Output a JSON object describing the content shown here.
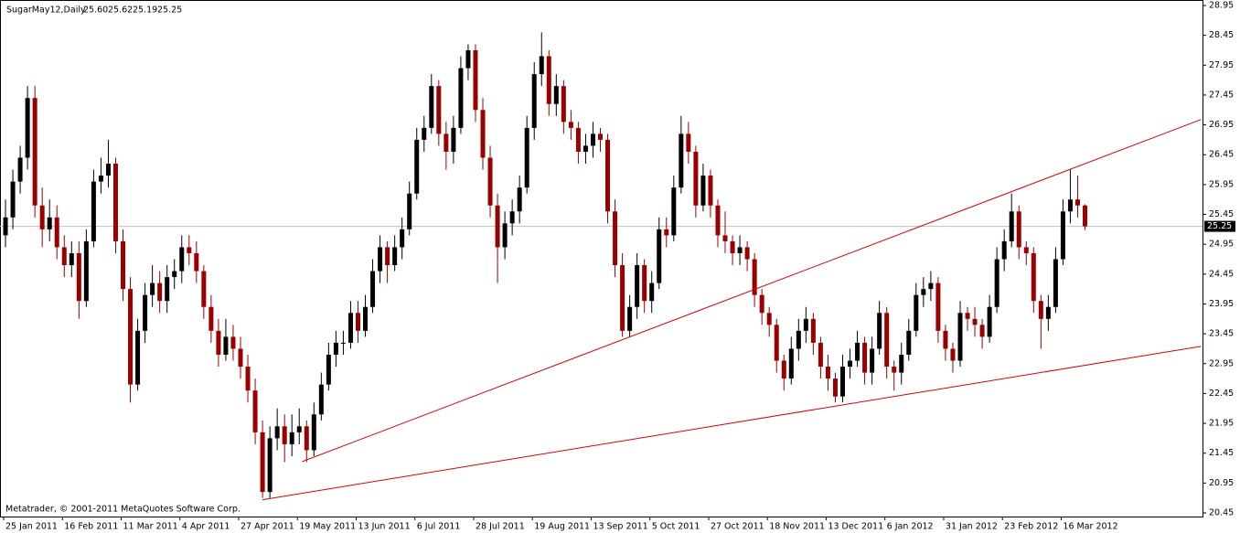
{
  "chart_data": {
    "type": "candlestick",
    "title": "SugarMay12,Daily",
    "header_quote": [
      "25.60",
      "25.62",
      "25.19",
      "25.25"
    ],
    "watermark": "Metatrader, © 2001-2011 MetaQuotes Software Corp.",
    "up_color": "#000000",
    "down_color": "#9a0000",
    "price_line_color": "#c0c0c0",
    "ylim": [
      20.45,
      28.95
    ],
    "yticks": [
      28.95,
      28.45,
      27.95,
      27.45,
      26.95,
      26.45,
      25.95,
      25.45,
      24.95,
      24.45,
      23.95,
      23.45,
      22.95,
      22.45,
      21.95,
      21.45,
      20.95,
      20.45
    ],
    "xlim": [
      -0.75,
      163
    ],
    "xticks": [
      {
        "value": 0,
        "label": "25 Jan 2011"
      },
      {
        "value": 8,
        "label": "16 Feb 2011"
      },
      {
        "value": 16,
        "label": "11 Mar 2011"
      },
      {
        "value": 24,
        "label": "4 Apr 2011"
      },
      {
        "value": 32,
        "label": "27 Apr 2011"
      },
      {
        "value": 40,
        "label": "19 May 2011"
      },
      {
        "value": 48,
        "label": "13 Jun 2011"
      },
      {
        "value": 56,
        "label": "6 Jul 2011"
      },
      {
        "value": 64,
        "label": "28 Jul 2011"
      },
      {
        "value": 72,
        "label": "19 Aug 2011"
      },
      {
        "value": 80,
        "label": "13 Sep 2011"
      },
      {
        "value": 88,
        "label": "5 Oct 2011"
      },
      {
        "value": 96,
        "label": "27 Oct 2011"
      },
      {
        "value": 104,
        "label": "18 Nov 2011"
      },
      {
        "value": 112,
        "label": "13 Dec 2011"
      },
      {
        "value": 120,
        "label": "6 Jan 2012"
      },
      {
        "value": 128,
        "label": "31 Jan 2012"
      },
      {
        "value": 136,
        "label": "23 Feb 2012"
      },
      {
        "value": 144,
        "label": "16 Mar 2012"
      }
    ],
    "trendlines": [
      {
        "color": "#dd0000",
        "x": [
          40.4,
          162.8
        ],
        "y": [
          21.31,
          27.04
        ]
      },
      {
        "color": "#dd0000",
        "x": [
          35,
          162.8
        ],
        "y": [
          20.67,
          23.24
        ]
      }
    ],
    "candles": [
      [
        25.1,
        25.7,
        24.9,
        25.4
      ],
      [
        25.4,
        26.2,
        25.2,
        26.0
      ],
      [
        26.0,
        26.6,
        25.8,
        26.4
      ],
      [
        26.4,
        27.6,
        26.2,
        27.4
      ],
      [
        27.4,
        27.6,
        25.4,
        25.6
      ],
      [
        25.6,
        25.9,
        24.9,
        25.2
      ],
      [
        25.2,
        25.7,
        25.0,
        25.4
      ],
      [
        25.4,
        25.6,
        24.7,
        24.9
      ],
      [
        24.9,
        25.1,
        24.4,
        24.6
      ],
      [
        24.6,
        25.0,
        24.4,
        24.8
      ],
      [
        24.8,
        25.0,
        23.7,
        24.0
      ],
      [
        24.0,
        25.2,
        23.9,
        25.0
      ],
      [
        25.0,
        26.2,
        24.9,
        26.0
      ],
      [
        26.0,
        26.4,
        25.8,
        26.1
      ],
      [
        26.1,
        26.7,
        25.9,
        26.3
      ],
      [
        26.3,
        26.4,
        24.8,
        25.0
      ],
      [
        25.0,
        25.2,
        24.0,
        24.2
      ],
      [
        24.2,
        24.4,
        22.3,
        22.6
      ],
      [
        22.6,
        23.7,
        22.5,
        23.5
      ],
      [
        23.5,
        24.3,
        23.3,
        24.1
      ],
      [
        24.1,
        24.6,
        23.9,
        24.3
      ],
      [
        24.3,
        24.5,
        23.8,
        24.0
      ],
      [
        24.0,
        24.6,
        23.8,
        24.4
      ],
      [
        24.4,
        24.7,
        24.2,
        24.5
      ],
      [
        24.5,
        25.1,
        24.3,
        24.9
      ],
      [
        24.9,
        25.1,
        24.6,
        24.8
      ],
      [
        24.8,
        25.0,
        24.3,
        24.5
      ],
      [
        24.5,
        24.6,
        23.7,
        23.9
      ],
      [
        23.9,
        24.1,
        23.3,
        23.5
      ],
      [
        23.5,
        23.7,
        22.9,
        23.1
      ],
      [
        23.1,
        23.7,
        23.0,
        23.4
      ],
      [
        23.4,
        23.6,
        23.0,
        23.2
      ],
      [
        23.2,
        23.4,
        22.7,
        22.9
      ],
      [
        22.9,
        23.1,
        22.3,
        22.5
      ],
      [
        22.5,
        22.7,
        21.6,
        21.8
      ],
      [
        21.8,
        22.0,
        20.7,
        20.8
      ],
      [
        20.8,
        21.9,
        20.7,
        21.7
      ],
      [
        21.7,
        22.2,
        21.5,
        21.9
      ],
      [
        21.9,
        22.1,
        21.3,
        21.6
      ],
      [
        21.6,
        22.1,
        21.4,
        21.8
      ],
      [
        21.8,
        22.2,
        21.6,
        21.9
      ],
      [
        21.9,
        22.0,
        21.3,
        21.5
      ],
      [
        21.5,
        22.3,
        21.4,
        22.1
      ],
      [
        22.1,
        22.8,
        22.0,
        22.6
      ],
      [
        22.6,
        23.3,
        22.5,
        23.1
      ],
      [
        23.1,
        23.5,
        22.9,
        23.3
      ],
      [
        23.3,
        23.5,
        23.1,
        23.3
      ],
      [
        23.3,
        24.0,
        23.2,
        23.8
      ],
      [
        23.8,
        24.0,
        23.3,
        23.5
      ],
      [
        23.5,
        24.1,
        23.4,
        23.9
      ],
      [
        23.9,
        24.7,
        23.8,
        24.5
      ],
      [
        24.5,
        25.1,
        24.3,
        24.9
      ],
      [
        24.9,
        25.0,
        24.3,
        24.6
      ],
      [
        24.6,
        25.1,
        24.5,
        24.9
      ],
      [
        24.9,
        25.4,
        24.7,
        25.2
      ],
      [
        25.2,
        26.0,
        25.1,
        25.8
      ],
      [
        25.8,
        26.9,
        25.7,
        26.7
      ],
      [
        26.7,
        27.1,
        26.5,
        26.9
      ],
      [
        26.9,
        27.8,
        26.8,
        27.6
      ],
      [
        27.6,
        27.7,
        26.6,
        26.8
      ],
      [
        26.8,
        27.0,
        26.2,
        26.5
      ],
      [
        26.5,
        27.1,
        26.3,
        26.9
      ],
      [
        26.9,
        28.1,
        26.8,
        27.9
      ],
      [
        27.9,
        28.3,
        27.7,
        28.2
      ],
      [
        28.2,
        28.3,
        27.0,
        27.2
      ],
      [
        27.2,
        27.4,
        26.2,
        26.4
      ],
      [
        26.4,
        26.6,
        25.4,
        25.6
      ],
      [
        25.6,
        25.8,
        24.3,
        24.9
      ],
      [
        24.9,
        25.5,
        24.7,
        25.3
      ],
      [
        25.3,
        25.7,
        25.1,
        25.5
      ],
      [
        25.5,
        26.1,
        25.3,
        25.9
      ],
      [
        25.9,
        27.1,
        25.8,
        26.9
      ],
      [
        26.9,
        28.0,
        26.7,
        27.8
      ],
      [
        27.8,
        28.5,
        27.6,
        28.1
      ],
      [
        28.1,
        28.2,
        27.1,
        27.3
      ],
      [
        27.3,
        27.8,
        27.1,
        27.6
      ],
      [
        27.6,
        27.7,
        26.8,
        27.0
      ],
      [
        27.0,
        27.2,
        26.7,
        26.9
      ],
      [
        26.9,
        27.0,
        26.3,
        26.5
      ],
      [
        26.5,
        26.8,
        26.3,
        26.6
      ],
      [
        26.6,
        27.0,
        26.4,
        26.8
      ],
      [
        26.8,
        26.9,
        26.5,
        26.7
      ],
      [
        26.7,
        26.8,
        25.3,
        25.5
      ],
      [
        25.5,
        25.7,
        24.4,
        24.6
      ],
      [
        24.6,
        24.8,
        23.4,
        23.5
      ],
      [
        23.5,
        24.1,
        23.4,
        23.9
      ],
      [
        23.9,
        24.8,
        23.7,
        24.6
      ],
      [
        24.6,
        24.7,
        23.8,
        24.0
      ],
      [
        24.0,
        24.5,
        23.8,
        24.3
      ],
      [
        24.3,
        25.4,
        24.2,
        25.2
      ],
      [
        25.2,
        25.4,
        24.9,
        25.1
      ],
      [
        25.1,
        26.1,
        25.0,
        25.9
      ],
      [
        25.9,
        27.1,
        25.8,
        26.8
      ],
      [
        26.8,
        27.0,
        26.3,
        26.5
      ],
      [
        26.5,
        26.6,
        25.4,
        25.6
      ],
      [
        25.6,
        26.3,
        25.5,
        26.1
      ],
      [
        26.1,
        26.2,
        25.4,
        25.6
      ],
      [
        25.6,
        25.7,
        24.9,
        25.1
      ],
      [
        25.1,
        25.5,
        24.8,
        25.0
      ],
      [
        25.0,
        25.1,
        24.6,
        24.8
      ],
      [
        24.8,
        25.1,
        24.6,
        24.9
      ],
      [
        24.9,
        25.0,
        24.5,
        24.7
      ],
      [
        24.7,
        24.8,
        23.9,
        24.1
      ],
      [
        24.1,
        24.2,
        23.6,
        23.8
      ],
      [
        23.8,
        23.9,
        23.4,
        23.6
      ],
      [
        23.6,
        23.7,
        22.8,
        23.0
      ],
      [
        23.0,
        23.1,
        22.5,
        22.7
      ],
      [
        22.7,
        23.4,
        22.6,
        23.2
      ],
      [
        23.2,
        23.7,
        23.0,
        23.5
      ],
      [
        23.5,
        23.9,
        23.3,
        23.7
      ],
      [
        23.7,
        23.8,
        23.1,
        23.3
      ],
      [
        23.3,
        23.4,
        22.7,
        22.9
      ],
      [
        22.9,
        23.1,
        22.5,
        22.7
      ],
      [
        22.7,
        22.8,
        22.3,
        22.4
      ],
      [
        22.4,
        23.1,
        22.3,
        22.9
      ],
      [
        22.9,
        23.2,
        22.7,
        23.0
      ],
      [
        23.0,
        23.5,
        22.9,
        23.3
      ],
      [
        23.3,
        23.4,
        22.6,
        22.8
      ],
      [
        22.8,
        23.4,
        22.6,
        23.2
      ],
      [
        23.2,
        24.0,
        23.1,
        23.8
      ],
      [
        23.8,
        23.9,
        22.7,
        22.9
      ],
      [
        22.9,
        23.0,
        22.5,
        22.8
      ],
      [
        22.8,
        23.3,
        22.6,
        23.1
      ],
      [
        23.1,
        23.7,
        23.0,
        23.5
      ],
      [
        23.5,
        24.3,
        23.4,
        24.1
      ],
      [
        24.1,
        24.4,
        23.9,
        24.2
      ],
      [
        24.2,
        24.5,
        24.0,
        24.3
      ],
      [
        24.3,
        24.4,
        23.3,
        23.5
      ],
      [
        23.5,
        23.6,
        23.0,
        23.2
      ],
      [
        23.2,
        23.3,
        22.8,
        23.0
      ],
      [
        23.0,
        24.0,
        22.9,
        23.8
      ],
      [
        23.8,
        23.9,
        23.5,
        23.7
      ],
      [
        23.7,
        23.9,
        23.4,
        23.6
      ],
      [
        23.6,
        23.7,
        23.2,
        23.4
      ],
      [
        23.4,
        24.1,
        23.3,
        23.9
      ],
      [
        23.9,
        24.9,
        23.8,
        24.7
      ],
      [
        24.7,
        25.2,
        24.5,
        25.0
      ],
      [
        25.0,
        25.8,
        24.9,
        25.5
      ],
      [
        25.5,
        25.6,
        24.7,
        24.9
      ],
      [
        24.9,
        25.0,
        24.6,
        24.8
      ],
      [
        24.8,
        24.9,
        23.8,
        24.0
      ],
      [
        24.0,
        24.1,
        23.2,
        23.7
      ],
      [
        23.7,
        24.1,
        23.5,
        23.9
      ],
      [
        23.9,
        24.9,
        23.8,
        24.7
      ],
      [
        24.7,
        25.7,
        24.6,
        25.5
      ],
      [
        25.5,
        26.2,
        25.3,
        25.7
      ],
      [
        25.7,
        26.1,
        25.4,
        25.6
      ],
      [
        25.6,
        25.62,
        25.19,
        25.25
      ]
    ]
  }
}
